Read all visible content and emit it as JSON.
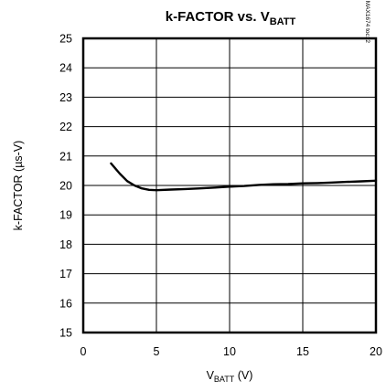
{
  "chart_data": {
    "type": "line",
    "title": {
      "main": "k-FACTOR vs. V",
      "sub": "BATT"
    },
    "xlabel": {
      "main": "V",
      "sub": "BATT",
      "unit": " (V)"
    },
    "ylabel": "k-FACTOR (µs-V)",
    "xlim": [
      0,
      20
    ],
    "ylim": [
      15,
      25
    ],
    "x_ticks": [
      "0",
      "5",
      "10",
      "15",
      "20"
    ],
    "y_ticks": [
      "15",
      "16",
      "17",
      "18",
      "19",
      "20",
      "21",
      "22",
      "23",
      "24",
      "25"
    ],
    "grid": true,
    "annotation": "MAX1674 toc12",
    "series": [
      {
        "x": [
          1.9,
          2.5,
          3.0,
          3.5,
          4.0,
          4.5,
          5.0,
          6.0,
          7.0,
          8.0,
          9.0,
          10.0,
          11.0,
          12.0,
          13.0,
          14.0,
          15.0,
          16.0,
          17.0,
          18.0,
          19.0,
          20.0
        ],
        "y": [
          20.75,
          20.4,
          20.15,
          20.0,
          19.9,
          19.85,
          19.84,
          19.86,
          19.88,
          19.9,
          19.93,
          19.96,
          19.98,
          20.02,
          20.04,
          20.05,
          20.07,
          20.08,
          20.1,
          20.12,
          20.14,
          20.16
        ]
      }
    ],
    "colors": {
      "line": "#000000",
      "grid": "#000000"
    }
  }
}
